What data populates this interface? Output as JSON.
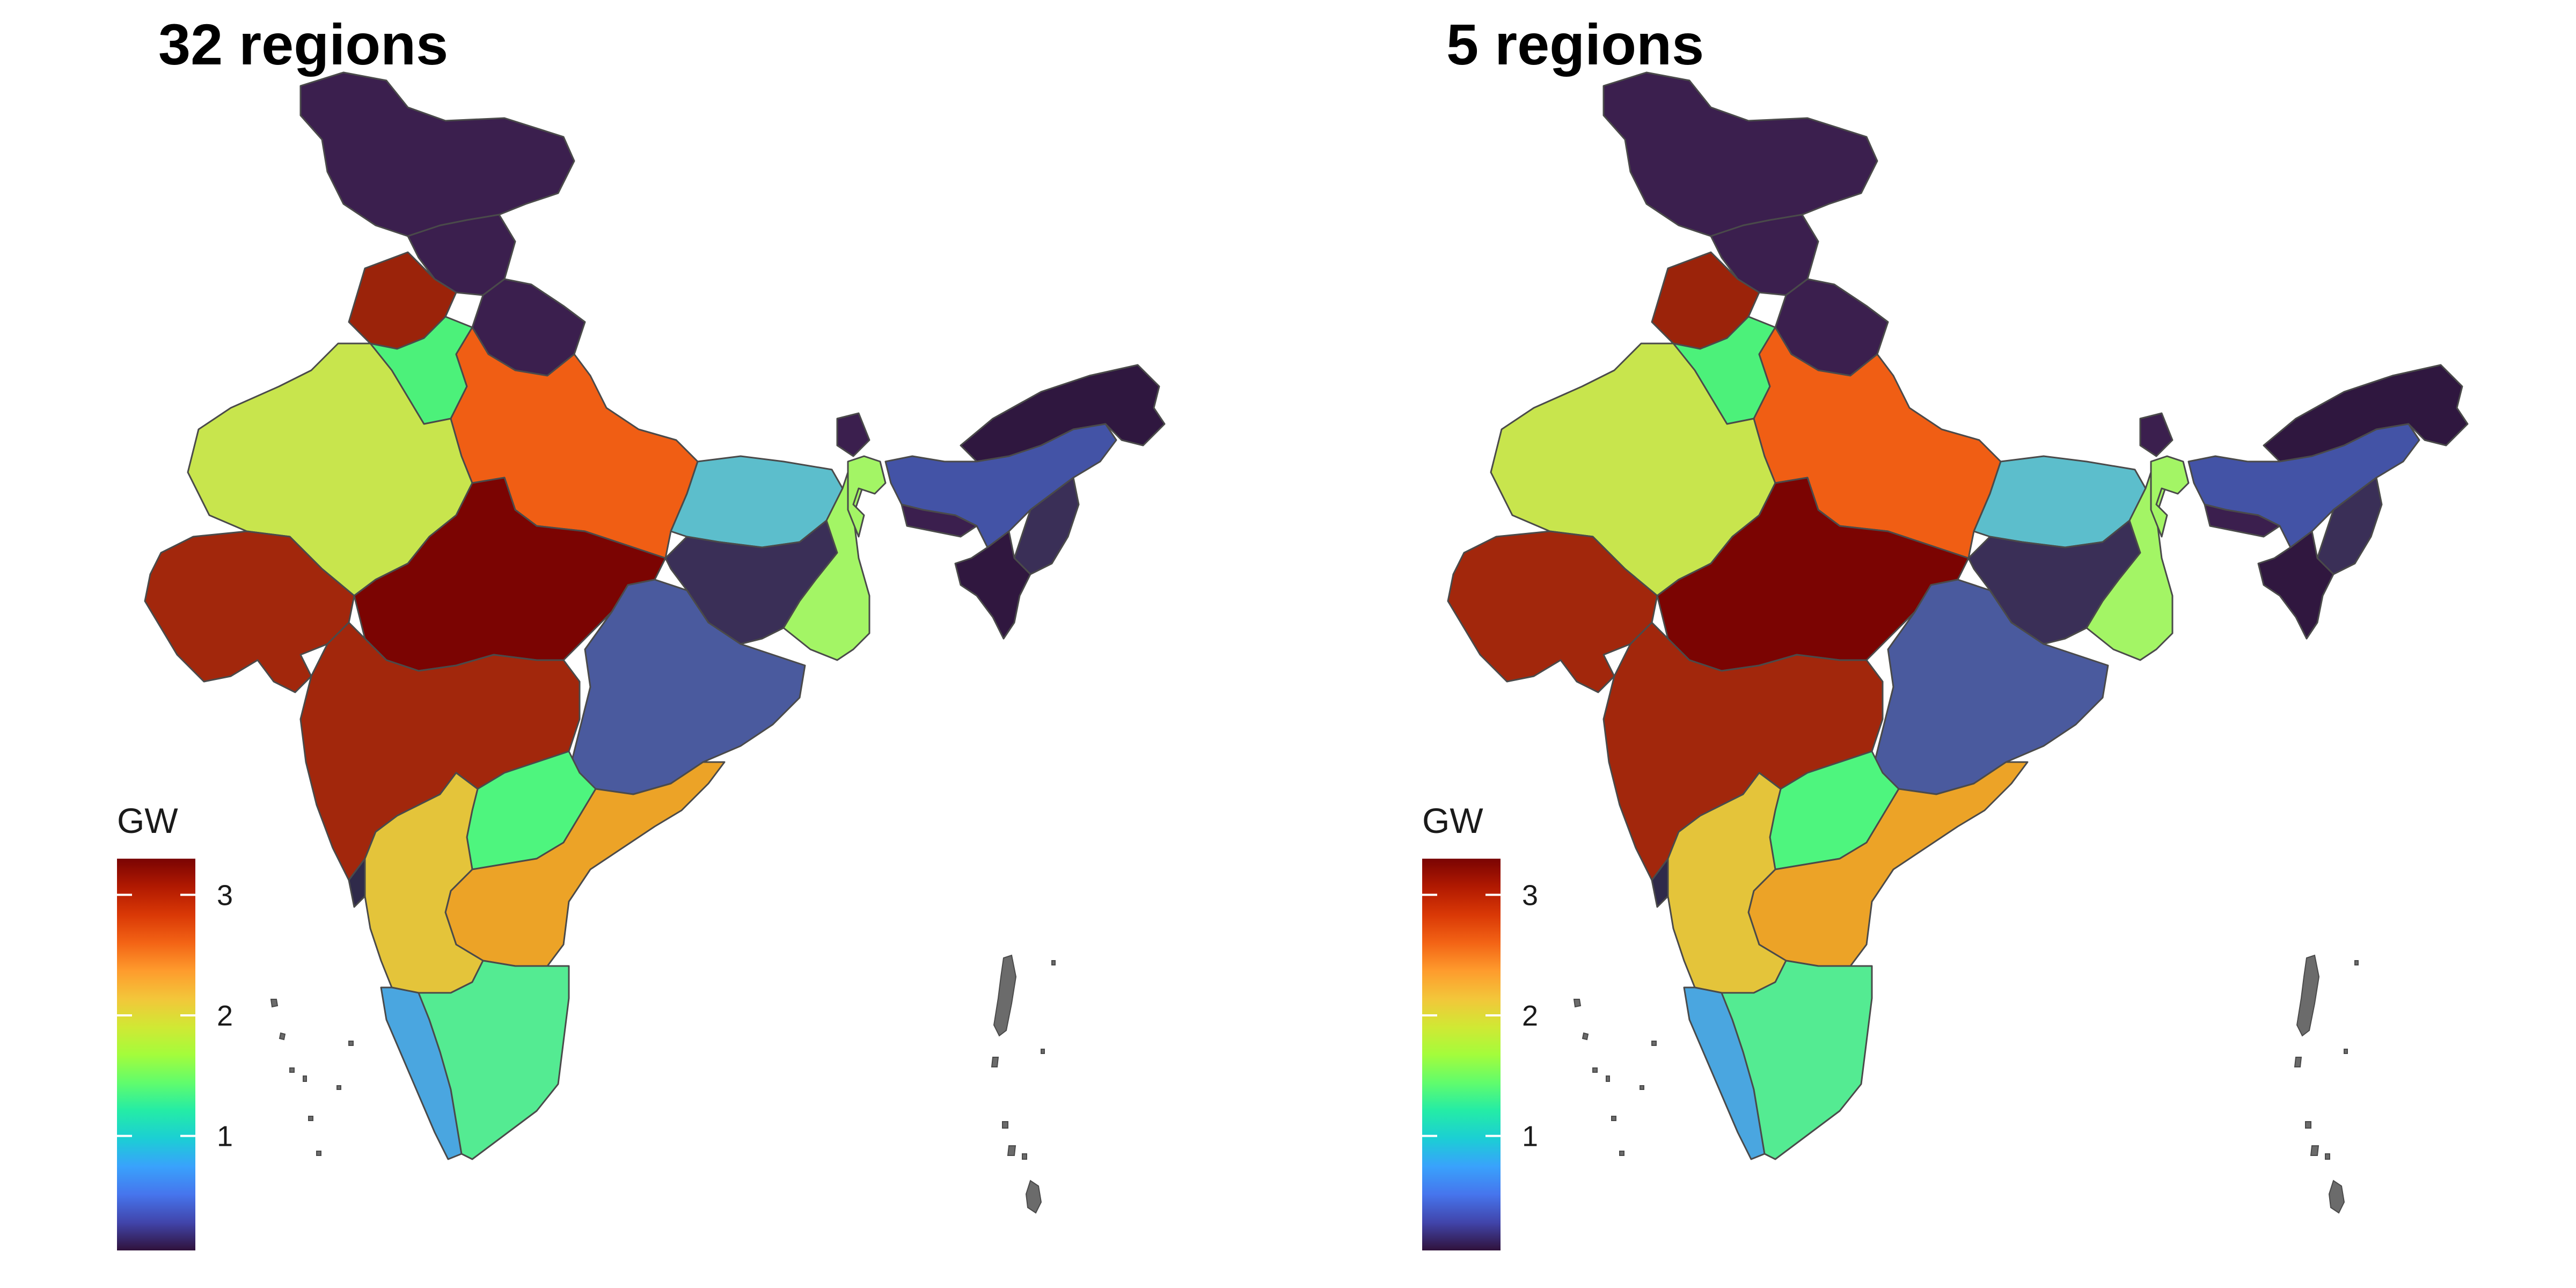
{
  "panels": [
    {
      "title": "32 regions"
    },
    {
      "title": "5 regions"
    }
  ],
  "legend": {
    "title": "GW",
    "ticks": [
      {
        "value": 1,
        "label": "1"
      },
      {
        "value": 2,
        "label": "2"
      },
      {
        "value": 3,
        "label": "3"
      }
    ],
    "range": [
      0.05,
      3.3
    ],
    "palette": [
      "#30123b",
      "#4145ab",
      "#4675ed",
      "#39a2fc",
      "#1bcfd4",
      "#24eca6",
      "#61fc6c",
      "#a4fc3b",
      "#d1e834",
      "#f3c63a",
      "#fe9b2d",
      "#f36315",
      "#d93806",
      "#b11901",
      "#7a0403"
    ]
  },
  "colors": {
    "background": "#ffffff",
    "border": "#4a4a4a",
    "island": "#6b6b6b"
  }
}
